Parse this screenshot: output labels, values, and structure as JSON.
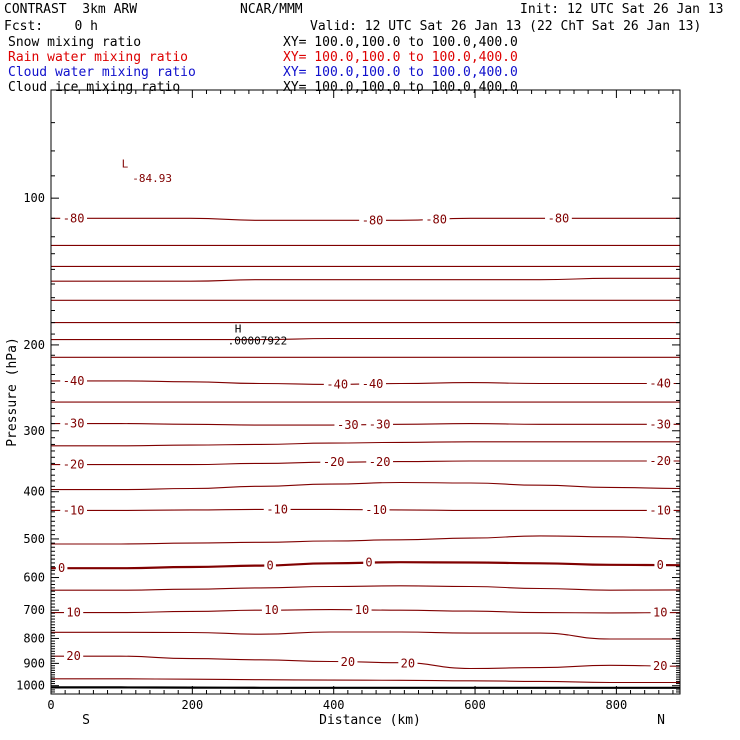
{
  "header": {
    "model": "CONTRAST  3km ARW",
    "org": "NCAR/MMM",
    "init": "Init: 12 UTC Sat 26 Jan 13",
    "fcst": "Fcst:    0 h",
    "valid": "Valid: 12 UTC Sat 26 Jan 13 (22 ChT Sat 26 Jan 13)"
  },
  "fields": [
    {
      "name": "Snow mixing ratio",
      "xy": "XY= 100.0,100.0 to 100.0,400.0",
      "color": "#000000"
    },
    {
      "name": "Rain water mixing ratio",
      "xy": "XY= 100.0,100.0 to 100.0,400.0",
      "color": "#dd0000"
    },
    {
      "name": "Cloud water mixing ratio",
      "xy": "XY= 100.0,100.0 to 100.0,400.0",
      "color": "#1010cc"
    },
    {
      "name": "Cloud ice mixing ratio",
      "xy": "XY= 100.0,100.0 to 100.0,400.0",
      "color": "#000000"
    }
  ],
  "chart_data": {
    "type": "line",
    "subtype": "vertical cross-section contour",
    "xlabel": "Distance (km)",
    "ylabel": "Pressure (hPa)",
    "xlim": [
      0,
      890
    ],
    "ylim": [
      1040,
      60
    ],
    "y_scale": "log",
    "x_ticks": [
      0,
      200,
      400,
      600,
      800
    ],
    "y_ticks": [
      100,
      200,
      300,
      400,
      500,
      600,
      700,
      800,
      900,
      1000
    ],
    "left_end_label": "S",
    "right_end_label": "N",
    "contour_color": "#800000",
    "annotations": [
      {
        "text": "L",
        "x": 100,
        "p": 85
      },
      {
        "text": "-84.93",
        "x": 115,
        "p": 91
      },
      {
        "text": "H",
        "x": 260,
        "p": 185
      },
      {
        "text": ".00007922",
        "x": 250,
        "p": 196
      }
    ],
    "contours": [
      {
        "pressure": [
          110,
          110,
          110,
          111,
          111,
          111,
          110,
          110,
          110,
          110
        ],
        "labels": [
          {
            "text": "-80",
            "x": 32
          },
          {
            "text": "-80",
            "x": 455
          },
          {
            "text": "-80",
            "x": 545
          },
          {
            "text": "-80",
            "x": 718
          }
        ]
      },
      {
        "pressure": [
          125,
          125,
          125,
          125,
          125,
          125,
          125,
          125,
          125,
          125
        ],
        "labels": []
      },
      {
        "pressure": [
          138,
          138,
          138,
          138,
          138,
          138,
          138,
          138,
          138,
          138
        ],
        "labels": []
      },
      {
        "pressure": [
          148,
          148,
          148,
          147,
          147,
          147,
          147,
          147,
          146,
          146
        ],
        "labels": []
      },
      {
        "pressure": [
          162,
          162,
          162,
          162,
          162,
          162,
          162,
          162,
          162,
          162
        ],
        "labels": []
      },
      {
        "pressure": [
          180,
          180,
          180,
          180,
          180,
          180,
          180,
          180,
          180,
          180
        ],
        "labels": []
      },
      {
        "pressure": [
          195,
          195,
          195,
          195,
          194,
          194,
          194,
          194,
          194,
          194
        ],
        "labels": []
      },
      {
        "pressure": [
          212,
          212,
          212,
          212,
          212,
          212,
          212,
          212,
          212,
          212
        ],
        "labels": []
      },
      {
        "pressure": [
          237,
          237,
          238,
          240,
          241,
          240,
          239,
          240,
          240,
          240
        ],
        "labels": [
          {
            "text": "-40",
            "x": 32
          },
          {
            "text": "-40",
            "x": 405
          },
          {
            "text": "-40",
            "x": 455
          },
          {
            "text": "-40",
            "x": 862
          }
        ]
      },
      {
        "pressure": [
          262,
          262,
          262,
          262,
          262,
          262,
          262,
          262,
          262,
          262
        ],
        "labels": []
      },
      {
        "pressure": [
          290,
          290,
          291,
          292,
          292,
          291,
          290,
          291,
          291,
          291
        ],
        "labels": [
          {
            "text": "-30",
            "x": 32
          },
          {
            "text": "-30",
            "x": 420
          },
          {
            "text": "-30",
            "x": 465
          },
          {
            "text": "-30",
            "x": 862
          }
        ]
      },
      {
        "pressure": [
          322,
          322,
          321,
          320,
          318,
          317,
          316,
          316,
          316,
          316
        ],
        "labels": []
      },
      {
        "pressure": [
          352,
          352,
          352,
          350,
          348,
          347,
          346,
          346,
          346,
          346
        ],
        "labels": [
          {
            "text": "-20",
            "x": 32
          },
          {
            "text": "-20",
            "x": 400
          },
          {
            "text": "-20",
            "x": 465
          },
          {
            "text": "-20",
            "x": 862
          }
        ]
      },
      {
        "pressure": [
          396,
          396,
          394,
          390,
          386,
          383,
          384,
          388,
          392,
          394
        ],
        "labels": []
      },
      {
        "pressure": [
          437,
          437,
          436,
          435,
          435,
          436,
          437,
          437,
          437,
          437
        ],
        "labels": [
          {
            "text": "-10",
            "x": 32
          },
          {
            "text": "-10",
            "x": 320
          },
          {
            "text": "-10",
            "x": 460
          },
          {
            "text": "-10",
            "x": 862
          }
        ]
      },
      {
        "pressure": [
          512,
          512,
          510,
          508,
          505,
          502,
          498,
          493,
          495,
          500
        ],
        "labels": []
      },
      {
        "pressure": [
          574,
          574,
          571,
          567,
          561,
          558,
          559,
          561,
          565,
          566
        ],
        "bold": true,
        "labels": [
          {
            "text": "0",
            "x": 15
          },
          {
            "text": "0",
            "x": 310
          },
          {
            "text": "0",
            "x": 450
          },
          {
            "text": "0",
            "x": 862
          }
        ]
      },
      {
        "pressure": [
          637,
          637,
          634,
          630,
          626,
          624,
          626,
          632,
          637,
          636
        ],
        "labels": []
      },
      {
        "pressure": [
          708,
          708,
          704,
          700,
          698,
          700,
          703,
          708,
          709,
          708
        ],
        "labels": [
          {
            "text": "10",
            "x": 32
          },
          {
            "text": "10",
            "x": 312
          },
          {
            "text": "10",
            "x": 440
          },
          {
            "text": "10",
            "x": 862
          }
        ]
      },
      {
        "pressure": [
          777,
          777,
          778,
          784,
          776,
          776,
          780,
          780,
          802,
          802
        ],
        "labels": []
      },
      {
        "pressure": [
          870,
          870,
          880,
          885,
          892,
          897,
          922,
          918,
          908,
          912
        ],
        "labels": [
          {
            "text": "20",
            "x": 32
          },
          {
            "text": "20",
            "x": 420
          },
          {
            "text": "20",
            "x": 505
          },
          {
            "text": "20",
            "x": 862
          }
        ]
      },
      {
        "pressure": [
          968,
          968,
          970,
          972,
          974,
          975,
          977,
          980,
          985,
          985
        ],
        "labels": []
      },
      {
        "pressure": [
          1008,
          1008,
          1009,
          1010,
          1010,
          1010,
          1010,
          1010,
          1010,
          1010
        ],
        "bold": true,
        "black": true,
        "labels": []
      }
    ]
  }
}
